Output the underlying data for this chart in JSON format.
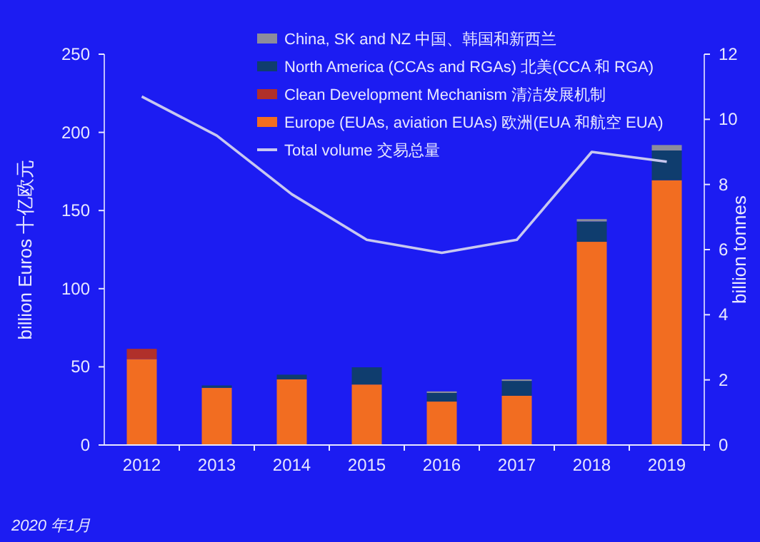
{
  "chart_data": {
    "type": "bar",
    "stacked": true,
    "categories": [
      "2012",
      "2013",
      "2014",
      "2015",
      "2016",
      "2017",
      "2018",
      "2019"
    ],
    "series": [
      {
        "name": "Europe (EUAs, aviation EUAs) 欧洲(EUA 和航空 EUA)",
        "color": "#f26d21",
        "values": [
          55,
          36.6,
          42,
          38.7,
          27.8,
          31.5,
          130,
          169.4
        ]
      },
      {
        "name": "Clean Development Mechanism 清洁发展机制",
        "color": "#b0302a",
        "values": [
          6.5,
          null,
          null,
          null,
          null,
          null,
          null,
          null
        ]
      },
      {
        "name": "North America (CCAs and RGAs) 北美(CCA 和 RGA)",
        "color": "#0f3d6e",
        "values": [
          null,
          1.5,
          3,
          11,
          5.5,
          9.5,
          13,
          19
        ]
      },
      {
        "name": "China, SK and NZ  中国、韩国和新西兰",
        "color": "#8c8c9c",
        "values": [
          null,
          null,
          null,
          null,
          1,
          1,
          1.5,
          3.5
        ]
      },
      {
        "name": "Total volume 交易总量",
        "type": "line",
        "axis": "y2",
        "color": "#c8c8f0",
        "values": [
          10.7,
          9.5,
          7.7,
          6.3,
          5.9,
          6.3,
          9.0,
          8.7
        ]
      }
    ],
    "ylabel": "billion Euros  十亿欧元",
    "y2label": "billion tonnes",
    "ylim": [
      0,
      250
    ],
    "yticks": [
      0,
      50,
      100,
      150,
      200,
      250
    ],
    "y2lim": [
      0,
      12
    ],
    "y2ticks": [
      0,
      2,
      4,
      6,
      8,
      10,
      12
    ],
    "legend": "top",
    "grid": false,
    "marker": "none",
    "line_style": "solid",
    "annotations": [
      "2020 年1月"
    ]
  }
}
